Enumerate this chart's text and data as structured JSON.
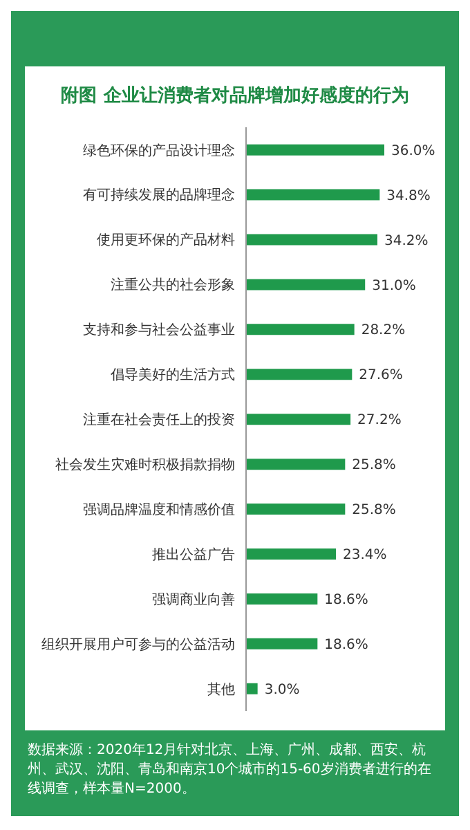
{
  "chart_data": {
    "type": "bar",
    "orientation": "horizontal",
    "title": "附图 企业让消费者对品牌增加好感度的行为",
    "categories": [
      "绿色环保的产品设计理念",
      "有可持续发展的品牌理念",
      "使用更环保的产品材料",
      "注重公共的社会形象",
      "支持和参与社会公益事业",
      "倡导美好的生活方式",
      "注重在社会责任上的投资",
      "社会发生灾难时积极捐款捐物",
      "强调品牌温度和情感价值",
      "推出公益广告",
      "强调商业向善",
      "组织开展用户可参与的公益活动",
      "其他"
    ],
    "values": [
      36.0,
      34.8,
      34.2,
      31.0,
      28.2,
      27.6,
      27.2,
      25.8,
      25.8,
      23.4,
      18.6,
      18.6,
      3.0
    ],
    "value_labels": [
      "36.0%",
      "34.8%",
      "34.2%",
      "31.0%",
      "28.2%",
      "27.6%",
      "27.2%",
      "25.8%",
      "25.8%",
      "23.4%",
      "18.6%",
      "18.6%",
      "3.0%"
    ],
    "color": "#1f9a4c",
    "annotations": [
      "数据来源：2020年12月针对北京、上海、广州、成都、西安、杭州、武汉、沈阳、青岛和南京10个城市的15-60岁消费者进行的在线调查，样本量N=2000。"
    ]
  }
}
